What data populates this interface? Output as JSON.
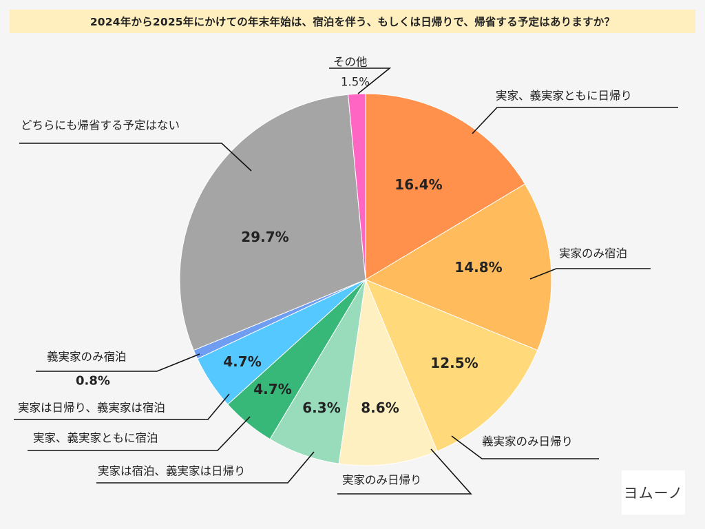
{
  "title": "2024年から2025年にかけての年末年始は、宿泊を伴う、もしくは日帰りで、帰省する予定はありますか？",
  "logo_text": "ヨムーノ",
  "chart_data": {
    "type": "pie",
    "title": "2024年から2025年にかけての年末年始は、宿泊を伴う、もしくは日帰りで、帰省する予定はありますか？",
    "start": "12 o'clock",
    "direction": "clockwise",
    "unit": "%",
    "slices": [
      {
        "label": "実家、義実家ともに日帰り",
        "value": 16.4,
        "display": "16.4%",
        "color": "#ff914d"
      },
      {
        "label": "実家のみ宿泊",
        "value": 14.8,
        "display": "14.8%",
        "color": "#ffbb5c"
      },
      {
        "label": "義実家のみ日帰り",
        "value": 12.5,
        "display": "12.5%",
        "color": "#ffd97a"
      },
      {
        "label": "実家のみ日帰り",
        "value": 8.6,
        "display": "8.6%",
        "color": "#fff0c2"
      },
      {
        "label": "実家は宿泊、義実家は日帰り",
        "value": 6.3,
        "display": "6.3%",
        "color": "#98dcbc"
      },
      {
        "label": "実家、義実家ともに宿泊",
        "value": 4.7,
        "display": "4.7%",
        "color": "#37b778"
      },
      {
        "label": "実家は日帰り、義実家は宿泊",
        "value": 4.7,
        "display": "4.7%",
        "color": "#55c8ff"
      },
      {
        "label": "義実家のみ宿泊",
        "value": 0.8,
        "display": "0.8%",
        "color": "#6e9df2"
      },
      {
        "label": "どちらにも帰省する予定はない",
        "value": 29.7,
        "display": "29.7%",
        "color": "#a5a5a5"
      },
      {
        "label": "その他",
        "value": 1.5,
        "display": "1.5%",
        "color": "#ff66c4"
      }
    ]
  }
}
